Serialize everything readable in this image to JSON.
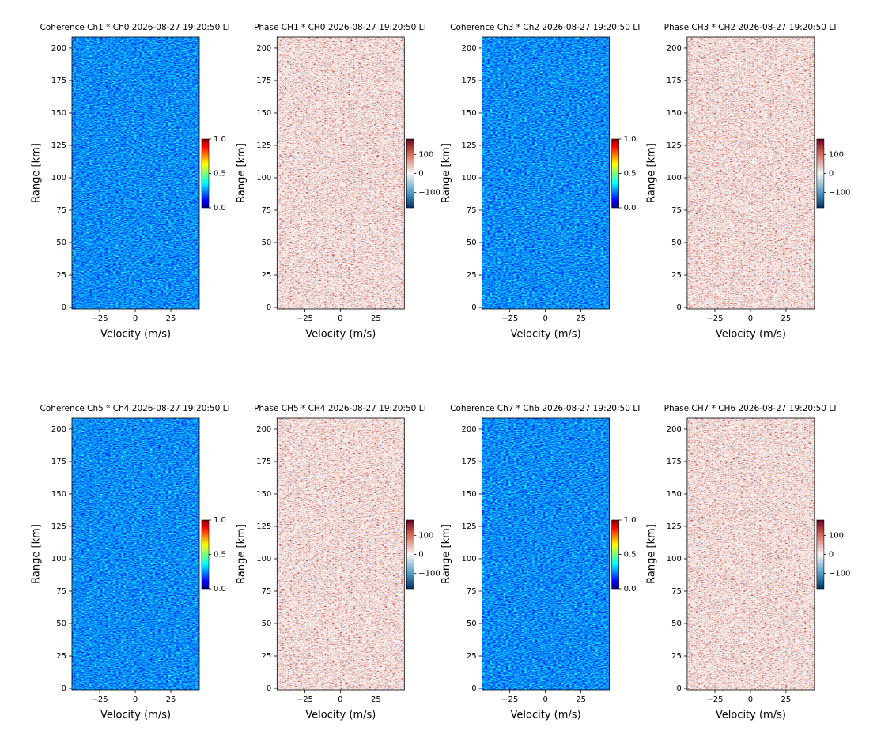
{
  "chart_data": [
    {
      "type": "heatmap",
      "title": "Coherence Ch1 * Ch0 2026-08-27 19:20:50 LT",
      "x_label": "Velocity (m/s)",
      "y_label": "Range [km]",
      "xlim": [
        -44.5,
        45
      ],
      "ylim": [
        -1.2,
        208.5
      ],
      "xticks": [
        {
          "value": -25,
          "label": "−25"
        },
        0,
        25
      ],
      "yticks": [
        0,
        25,
        50,
        75,
        100,
        125,
        150,
        175,
        200
      ],
      "colormap": "jet",
      "clim": [
        0,
        1
      ],
      "cticks": [
        {
          "value": 0,
          "label": "0.0"
        },
        0.5,
        {
          "value": 1,
          "label": "1.0"
        }
      ]
    },
    {
      "type": "heatmap",
      "title": "Phase CH1 * CH0 2026-08-27 19:20:50 LT",
      "x_label": "Velocity (m/s)",
      "y_label": "Range [km]",
      "xlim": [
        -44.5,
        45
      ],
      "ylim": [
        -1.2,
        208.5
      ],
      "xticks": [
        {
          "value": -25,
          "label": "−25"
        },
        0,
        25
      ],
      "yticks": [
        0,
        25,
        50,
        75,
        100,
        125,
        150,
        175,
        200
      ],
      "colormap": "RdBu_r",
      "clim": [
        -180,
        180
      ],
      "cticks": [
        {
          "value": -100,
          "label": "−100"
        },
        0,
        100
      ]
    },
    {
      "type": "heatmap",
      "title": "Coherence Ch3 * Ch2 2026-08-27 19:20:50 LT",
      "x_label": "Velocity (m/s)",
      "y_label": "Range [km]",
      "xlim": [
        -44.5,
        45
      ],
      "ylim": [
        -1.2,
        208.5
      ],
      "xticks": [
        {
          "value": -25,
          "label": "−25"
        },
        0,
        25
      ],
      "yticks": [
        0,
        25,
        50,
        75,
        100,
        125,
        150,
        175,
        200
      ],
      "colormap": "jet",
      "clim": [
        0,
        1
      ],
      "cticks": [
        {
          "value": 0,
          "label": "0.0"
        },
        0.5,
        {
          "value": 1,
          "label": "1.0"
        }
      ]
    },
    {
      "type": "heatmap",
      "title": "Phase CH3 * CH2 2026-08-27 19:20:50 LT",
      "x_label": "Velocity (m/s)",
      "y_label": "Range [km]",
      "xlim": [
        -44.5,
        45
      ],
      "ylim": [
        -1.2,
        208.5
      ],
      "xticks": [
        {
          "value": -25,
          "label": "−25"
        },
        0,
        25
      ],
      "yticks": [
        0,
        25,
        50,
        75,
        100,
        125,
        150,
        175,
        200
      ],
      "colormap": "RdBu_r",
      "clim": [
        -180,
        180
      ],
      "cticks": [
        {
          "value": -100,
          "label": "−100"
        },
        0,
        100
      ]
    },
    {
      "type": "heatmap",
      "title": "Coherence Ch5 * Ch4 2026-08-27 19:20:50 LT",
      "x_label": "Velocity (m/s)",
      "y_label": "Range [km]",
      "xlim": [
        -44.5,
        45
      ],
      "ylim": [
        -1.2,
        208.5
      ],
      "xticks": [
        {
          "value": -25,
          "label": "−25"
        },
        0,
        25
      ],
      "yticks": [
        0,
        25,
        50,
        75,
        100,
        125,
        150,
        175,
        200
      ],
      "colormap": "jet",
      "clim": [
        0,
        1
      ],
      "cticks": [
        {
          "value": 0,
          "label": "0.0"
        },
        0.5,
        {
          "value": 1,
          "label": "1.0"
        }
      ]
    },
    {
      "type": "heatmap",
      "title": "Phase CH5 * CH4 2026-08-27 19:20:50 LT",
      "x_label": "Velocity (m/s)",
      "y_label": "Range [km]",
      "xlim": [
        -44.5,
        45
      ],
      "ylim": [
        -1.2,
        208.5
      ],
      "xticks": [
        {
          "value": -25,
          "label": "−25"
        },
        0,
        25
      ],
      "yticks": [
        0,
        25,
        50,
        75,
        100,
        125,
        150,
        175,
        200
      ],
      "colormap": "RdBu_r",
      "clim": [
        -180,
        180
      ],
      "cticks": [
        {
          "value": -100,
          "label": "−100"
        },
        0,
        100
      ]
    },
    {
      "type": "heatmap",
      "title": "Coherence Ch7 * Ch6 2026-08-27 19:20:50 LT",
      "x_label": "Velocity (m/s)",
      "y_label": "Range [km]",
      "xlim": [
        -44.5,
        45
      ],
      "ylim": [
        -1.2,
        208.5
      ],
      "xticks": [
        {
          "value": -25,
          "label": "−25"
        },
        0,
        25
      ],
      "yticks": [
        0,
        25,
        50,
        75,
        100,
        125,
        150,
        175,
        200
      ],
      "colormap": "jet",
      "clim": [
        0,
        1
      ],
      "cticks": [
        {
          "value": 0,
          "label": "0.0"
        },
        0.5,
        {
          "value": 1,
          "label": "1.0"
        }
      ]
    },
    {
      "type": "heatmap",
      "title": "Phase CH7 * CH6 2026-08-27 19:20:50 LT",
      "x_label": "Velocity (m/s)",
      "y_label": "Range [km]",
      "xlim": [
        -44.5,
        45
      ],
      "ylim": [
        -1.2,
        208.5
      ],
      "xticks": [
        {
          "value": -25,
          "label": "−25"
        },
        0,
        25
      ],
      "yticks": [
        0,
        25,
        50,
        75,
        100,
        125,
        150,
        175,
        200
      ],
      "colormap": "RdBu_r",
      "clim": [
        -180,
        180
      ],
      "cticks": [
        {
          "value": -100,
          "label": "−100"
        },
        0,
        100
      ]
    }
  ]
}
